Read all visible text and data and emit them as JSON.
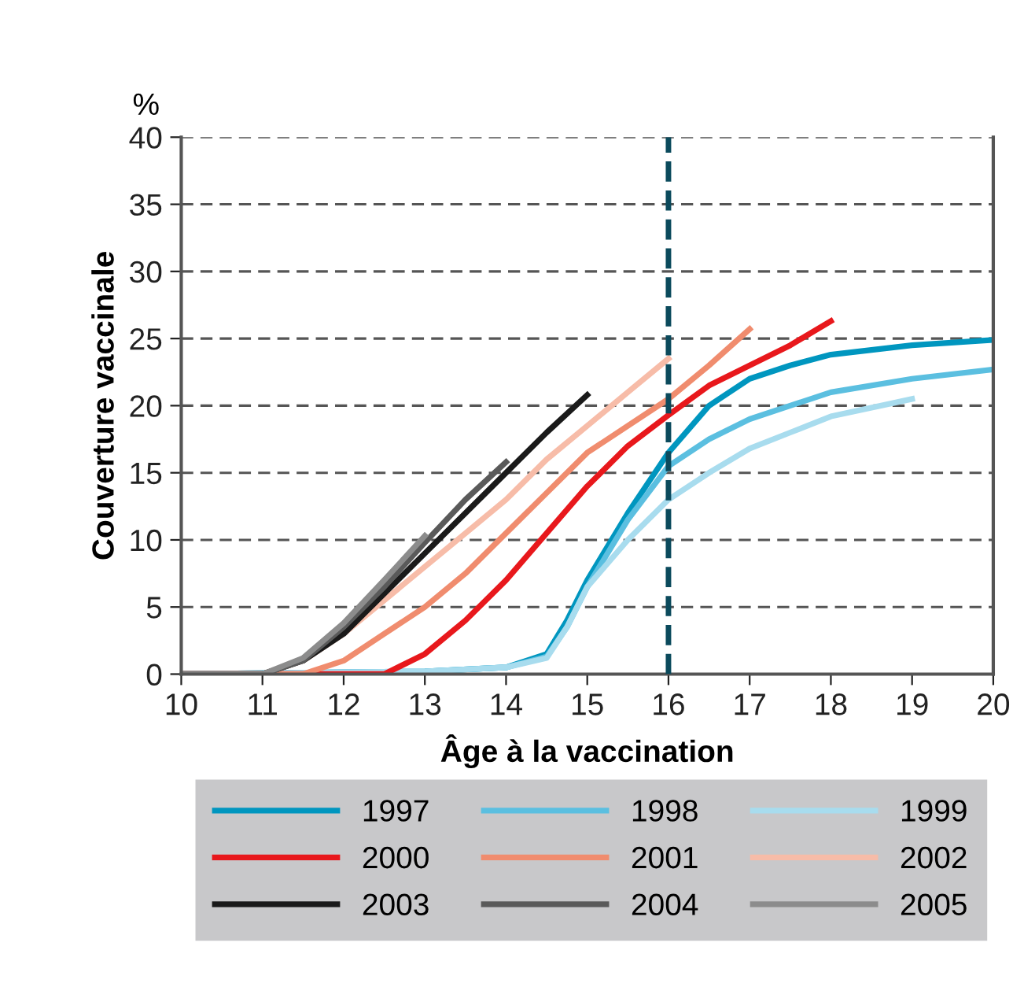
{
  "chart_data": {
    "type": "line",
    "xlabel": "Âge à la vaccination",
    "ylabel": "Couverture vaccinale",
    "annotations": [
      "%"
    ],
    "xlim": [
      10,
      20
    ],
    "xticks": [
      10,
      11,
      12,
      13,
      14,
      15,
      16,
      17,
      18,
      19,
      20
    ],
    "ylim": [
      0,
      40
    ],
    "yticks": [
      0,
      5,
      10,
      15,
      20,
      25,
      30,
      35,
      40
    ],
    "grid": "y",
    "legend": "bottom",
    "line_style": "solid",
    "marker": "none",
    "ref_lines": [
      {
        "axis": "x",
        "value": 16,
        "color": "#0b4a5c",
        "line_style": "dashed"
      }
    ],
    "series": [
      {
        "name": "1997",
        "color": "#0096bf",
        "x": [
          10,
          13,
          14,
          14.5,
          14.75,
          15,
          15.5,
          16,
          16.5,
          17,
          17.5,
          18,
          19,
          20
        ],
        "values": [
          0,
          0.2,
          0.5,
          1.5,
          4,
          7,
          12,
          16.5,
          20,
          22,
          23,
          23.8,
          24.5,
          24.9
        ]
      },
      {
        "name": "1998",
        "color": "#5bbfe0",
        "x": [
          10,
          13,
          14,
          14.5,
          14.75,
          15,
          15.5,
          16,
          16.5,
          17,
          17.5,
          18,
          19,
          20
        ],
        "values": [
          0,
          0.2,
          0.5,
          1.3,
          3.5,
          6.5,
          11.5,
          15.5,
          17.5,
          19,
          20,
          21,
          22,
          22.7
        ]
      },
      {
        "name": "1999",
        "color": "#a8dcee",
        "x": [
          10,
          13,
          14,
          14.5,
          14.75,
          15,
          15.5,
          16,
          16.5,
          17,
          17.5,
          18,
          19
        ],
        "values": [
          0,
          0.2,
          0.5,
          1.2,
          3.5,
          6.5,
          10,
          13,
          15,
          16.8,
          18,
          19.2,
          20.5
        ]
      },
      {
        "name": "2000",
        "color": "#e8181c",
        "x": [
          10,
          12.5,
          13,
          13.5,
          14,
          14.5,
          15,
          15.5,
          16,
          16.5,
          17,
          17.5,
          18
        ],
        "values": [
          0,
          0,
          1.5,
          4,
          7,
          10.5,
          14,
          17,
          19.3,
          21.5,
          23,
          24.5,
          26.3
        ]
      },
      {
        "name": "2001",
        "color": "#f08c6e",
        "x": [
          10,
          11.5,
          12,
          12.5,
          13,
          13.5,
          14,
          14.5,
          15,
          15.5,
          16,
          16.5,
          17
        ],
        "values": [
          0,
          0,
          1,
          3,
          5,
          7.5,
          10.5,
          13.5,
          16.5,
          18.5,
          20.5,
          23,
          25.7
        ]
      },
      {
        "name": "2002",
        "color": "#f7bca8",
        "x": [
          10,
          11,
          11.5,
          12,
          12.5,
          13,
          13.5,
          14,
          14.5,
          15,
          15.5,
          16
        ],
        "values": [
          0,
          0,
          1,
          3,
          5.5,
          8,
          10.5,
          13,
          16,
          18.5,
          21,
          23.5
        ]
      },
      {
        "name": "2003",
        "color": "#1a1a1a",
        "x": [
          10,
          11,
          11.5,
          12,
          12.5,
          13,
          13.5,
          14,
          14.5,
          15
        ],
        "values": [
          0,
          0,
          1,
          3,
          6,
          9,
          12,
          15,
          18,
          20.8
        ]
      },
      {
        "name": "2004",
        "color": "#5a5a5a",
        "x": [
          10,
          11,
          11.5,
          12,
          12.5,
          13,
          13.5,
          14
        ],
        "values": [
          0,
          0,
          1,
          3.5,
          6.5,
          9.8,
          13,
          15.8
        ]
      },
      {
        "name": "2005",
        "color": "#8c8c8c",
        "x": [
          10,
          11,
          11.5,
          12,
          12.5,
          13
        ],
        "values": [
          0,
          0,
          1.2,
          3.8,
          7,
          10.3
        ]
      }
    ]
  }
}
